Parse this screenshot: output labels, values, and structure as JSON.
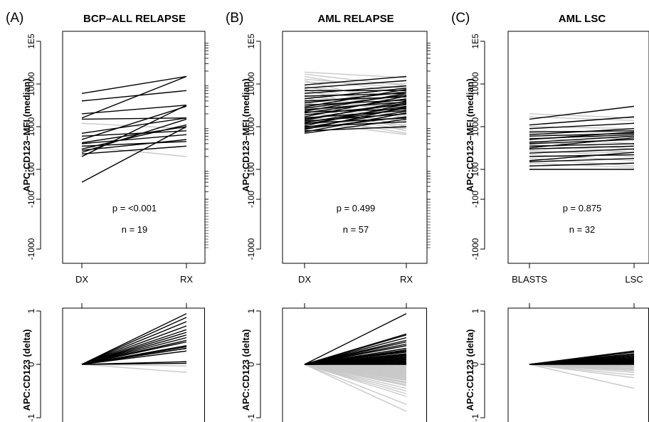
{
  "colors": {
    "up": "#000000",
    "down": "#c8c8c8",
    "axis": "#000000"
  },
  "y_ticks_top": [
    "-1000",
    "-100",
    "100",
    "1000",
    "10000",
    "1E5"
  ],
  "y_ticks_bottom": [
    "-1",
    "0",
    "1"
  ],
  "panels": [
    {
      "letter": "(A)",
      "title": "BCP–ALL RELAPSE",
      "ylabel_top": "APC:CD123–MFI (median)",
      "ylabel_bottom": "APC:CD123 (delta)",
      "xlabels": [
        "DX",
        "RX"
      ],
      "p_text": "p = <0.001",
      "n_text": "n = 19"
    },
    {
      "letter": "(B)",
      "title": "AML RELAPSE",
      "ylabel_top": "APC:CD123–MFI (median)",
      "ylabel_bottom": "APC:CD123 (delta)",
      "xlabels": [
        "DX",
        "RX"
      ],
      "p_text": "p = 0.499",
      "n_text": "n = 57"
    },
    {
      "letter": "(C)",
      "title": "AML LSC",
      "ylabel_top": "APC:CD123–MFI (median)",
      "ylabel_bottom": "APC:CD123 (delta)",
      "xlabels": [
        "BLASTS",
        "LSC"
      ],
      "p_text": "p = 0.875",
      "n_text": "n = 32"
    }
  ],
  "chart_data": [
    {
      "type": "line",
      "panel": "A-top",
      "title": "BCP–ALL RELAPSE",
      "xlabel": "",
      "ylabel": "APC:CD123–MFI (median)",
      "categories": [
        "DX",
        "RX"
      ],
      "yscale": "log",
      "ylim": [
        -1000,
        100000
      ],
      "y_tick_labels": [
        "-1000",
        "-100",
        "100",
        "1000",
        "10000",
        "1E5"
      ],
      "annotations": [
        "p = <0.001",
        "n = 19"
      ],
      "pairs": [
        [
          6000,
          15000
        ],
        [
          4000,
          7000
        ],
        [
          2000,
          3200
        ],
        [
          1600,
          15000
        ],
        [
          1500,
          1600
        ],
        [
          1200,
          900
        ],
        [
          700,
          1600
        ],
        [
          600,
          800
        ],
        [
          500,
          3000
        ],
        [
          420,
          1000
        ],
        [
          400,
          650
        ],
        [
          350,
          450
        ],
        [
          300,
          1100
        ],
        [
          280,
          500
        ],
        [
          250,
          1500
        ],
        [
          230,
          350
        ],
        [
          200,
          3200
        ],
        [
          350,
          200
        ],
        [
          50,
          1000
        ]
      ]
    },
    {
      "type": "line",
      "panel": "B-top",
      "title": "AML RELAPSE",
      "xlabel": "",
      "ylabel": "APC:CD123–MFI (median)",
      "categories": [
        "DX",
        "RX"
      ],
      "yscale": "log",
      "ylim": [
        -1000,
        100000
      ],
      "y_tick_labels": [
        "-1000",
        "-100",
        "100",
        "1000",
        "10000",
        "1E5"
      ],
      "annotations": [
        "p = 0.499",
        "n = 57"
      ],
      "pairs": [
        [
          19000,
          14000
        ],
        [
          17000,
          9000
        ],
        [
          15000,
          6000
        ],
        [
          13000,
          8000
        ],
        [
          12000,
          3000
        ],
        [
          11000,
          10000
        ],
        [
          9500,
          15000
        ],
        [
          9000,
          2500
        ],
        [
          8500,
          5000
        ],
        [
          8000,
          12000
        ],
        [
          7500,
          1500
        ],
        [
          7000,
          7000
        ],
        [
          6500,
          4000
        ],
        [
          6000,
          9000
        ],
        [
          5500,
          2000
        ],
        [
          5200,
          6000
        ],
        [
          5000,
          3500
        ],
        [
          4800,
          1200
        ],
        [
          4500,
          8000
        ],
        [
          4200,
          2800
        ],
        [
          4000,
          5000
        ],
        [
          3800,
          1000
        ],
        [
          3600,
          6500
        ],
        [
          3400,
          3000
        ],
        [
          3200,
          4200
        ],
        [
          3000,
          900
        ],
        [
          2900,
          7500
        ],
        [
          2800,
          2200
        ],
        [
          2700,
          5500
        ],
        [
          2600,
          1800
        ],
        [
          2500,
          3800
        ],
        [
          2400,
          800
        ],
        [
          2300,
          6000
        ],
        [
          2200,
          2600
        ],
        [
          2100,
          4500
        ],
        [
          2000,
          1400
        ],
        [
          1900,
          3300
        ],
        [
          1800,
          700
        ],
        [
          1700,
          5200
        ],
        [
          1600,
          2400
        ],
        [
          1500,
          3600
        ],
        [
          1450,
          1100
        ],
        [
          1400,
          4000
        ],
        [
          1350,
          2000
        ],
        [
          1300,
          650
        ],
        [
          1250,
          3000
        ],
        [
          1200,
          1600
        ],
        [
          1150,
          2700
        ],
        [
          1100,
          900
        ],
        [
          1050,
          3400
        ],
        [
          1000,
          1300
        ],
        [
          950,
          2300
        ],
        [
          900,
          1700
        ],
        [
          850,
          2900
        ],
        [
          800,
          1000
        ],
        [
          750,
          2100
        ],
        [
          700,
          1500
        ]
      ]
    },
    {
      "type": "line",
      "panel": "C-top",
      "title": "AML LSC",
      "xlabel": "",
      "ylabel": "APC:CD123–MFI (median)",
      "categories": [
        "BLASTS",
        "LSC"
      ],
      "yscale": "log",
      "ylim": [
        -1000,
        100000
      ],
      "y_tick_labels": [
        "-1000",
        "-100",
        "100",
        "1000",
        "10000",
        "1E5"
      ],
      "annotations": [
        "p = 0.875",
        "n = 32"
      ],
      "pairs": [
        [
          2000,
          1600
        ],
        [
          1700,
          1400
        ],
        [
          1500,
          3000
        ],
        [
          1100,
          1700
        ],
        [
          1000,
          900
        ],
        [
          900,
          1200
        ],
        [
          800,
          700
        ],
        [
          750,
          800
        ],
        [
          700,
          500
        ],
        [
          650,
          900
        ],
        [
          600,
          700
        ],
        [
          550,
          400
        ],
        [
          520,
          650
        ],
        [
          500,
          750
        ],
        [
          460,
          300
        ],
        [
          430,
          600
        ],
        [
          400,
          500
        ],
        [
          380,
          250
        ],
        [
          350,
          400
        ],
        [
          320,
          550
        ],
        [
          300,
          350
        ],
        [
          280,
          200
        ],
        [
          260,
          250
        ],
        [
          240,
          300
        ],
        [
          220,
          160
        ],
        [
          200,
          220
        ],
        [
          180,
          120
        ],
        [
          160,
          250
        ],
        [
          150,
          180
        ],
        [
          140,
          110
        ],
        [
          120,
          140
        ],
        [
          100,
          100
        ]
      ]
    },
    {
      "type": "line",
      "panel": "A-bottom",
      "ylabel": "APC:CD123 (delta)",
      "xlabel": "",
      "ylim": [
        -1.1,
        1.1
      ],
      "y_tick_labels": [
        "-1",
        "0",
        "1"
      ],
      "deltas": [
        0.95,
        0.88,
        0.8,
        0.72,
        0.65,
        0.6,
        0.55,
        0.5,
        0.45,
        0.42,
        0.35,
        0.33,
        0.3,
        0.3,
        0.25,
        0.05,
        0.02,
        -0.03,
        -0.15
      ]
    },
    {
      "type": "line",
      "panel": "B-bottom",
      "ylabel": "APC:CD123 (delta)",
      "xlabel": "",
      "ylim": [
        -1.1,
        1.1
      ],
      "y_tick_labels": [
        "-1",
        "0",
        "1"
      ],
      "deltas": [
        0.95,
        0.57,
        0.55,
        0.5,
        0.45,
        0.42,
        0.38,
        0.35,
        0.3,
        0.27,
        0.25,
        0.23,
        0.2,
        0.18,
        0.17,
        0.15,
        0.13,
        0.12,
        0.1,
        0.09,
        0.08,
        0.06,
        0.05,
        0.04,
        0.03,
        0.02,
        0.01,
        0.0,
        -0.01,
        -0.02,
        -0.03,
        -0.05,
        -0.06,
        -0.08,
        -0.1,
        -0.11,
        -0.13,
        -0.14,
        -0.15,
        -0.17,
        -0.19,
        -0.2,
        -0.22,
        -0.24,
        -0.26,
        -0.28,
        -0.3,
        -0.33,
        -0.35,
        -0.38,
        -0.4,
        -0.45,
        -0.5,
        -0.55,
        -0.6,
        -0.75,
        -0.88
      ]
    },
    {
      "type": "line",
      "panel": "C-bottom",
      "ylabel": "APC:CD123 (delta)",
      "xlabel": "",
      "ylim": [
        -1.1,
        1.1
      ],
      "y_tick_labels": [
        "-1",
        "0",
        "1"
      ],
      "deltas": [
        0.25,
        0.23,
        0.2,
        0.18,
        0.16,
        0.15,
        0.13,
        0.12,
        0.11,
        0.1,
        0.09,
        0.08,
        0.07,
        0.06,
        0.05,
        0.05,
        0.04,
        0.03,
        0.02,
        0.02,
        0.01,
        0.0,
        -0.02,
        -0.04,
        -0.06,
        -0.08,
        -0.1,
        -0.12,
        -0.15,
        -0.2,
        -0.25,
        -0.45
      ]
    }
  ]
}
